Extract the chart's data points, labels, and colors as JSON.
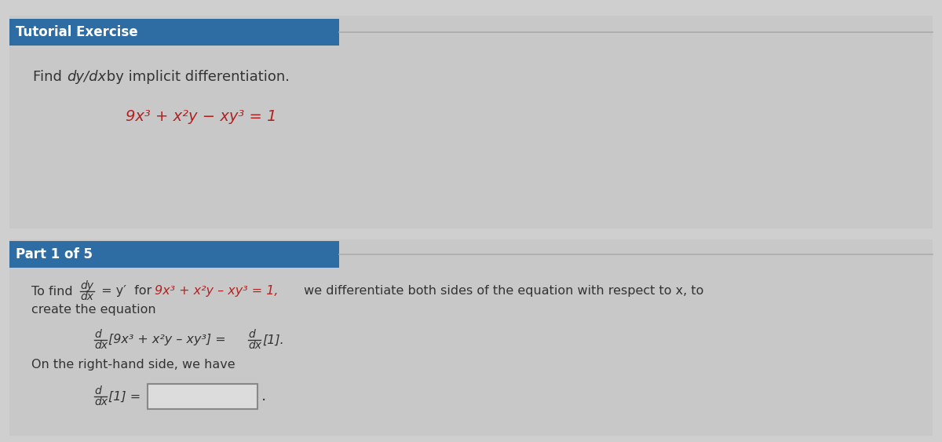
{
  "bg_color": "#d0cfcf",
  "panel_bg": "#c9c8c8",
  "header_bg": "#2e6da4",
  "header_text_color": "#ffffff",
  "body_text_color": "#333333",
  "red_color": "#b22222",
  "tutorial_header": "Tutorial Exercise",
  "part_header": "Part 1 of 5",
  "find_text_1": "Find ",
  "find_text_italic": "dy/dx",
  "find_text_2": " by implicit differentiation.",
  "equation_main": "9x³ + x²y - xy³ = 1",
  "line1_end": "we differentiate both sides of the equation with respect to x, to",
  "line2": "create the equation",
  "rhs_text": "On the right-hand side, we have"
}
